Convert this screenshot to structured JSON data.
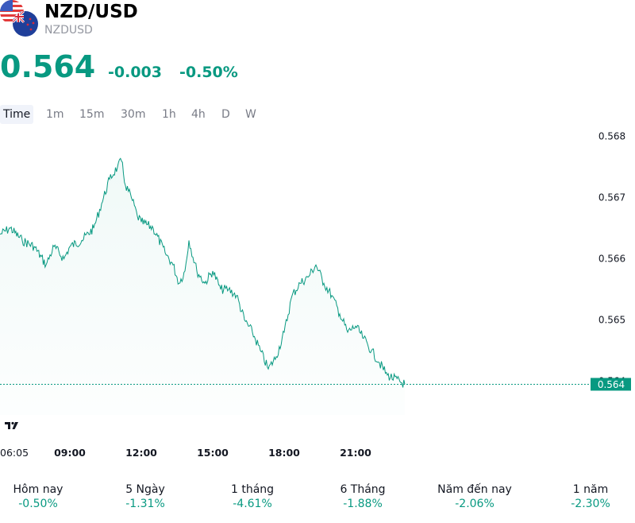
{
  "header": {
    "title": "NZD/USD",
    "symbol": "NZDUSD"
  },
  "quote": {
    "price": "0.564",
    "change": "-0.003",
    "change_percent": "-0.50%",
    "color": "#089981"
  },
  "intervals": [
    {
      "label": "Time",
      "active": true
    },
    {
      "label": "1m"
    },
    {
      "label": "15m"
    },
    {
      "label": "30m"
    },
    {
      "label": "1h"
    },
    {
      "label": "4h"
    },
    {
      "label": "D"
    },
    {
      "label": "W"
    }
  ],
  "chart_data": {
    "type": "area",
    "line_color": "#089981",
    "x_tick_labels": [
      "06:05",
      "09:00",
      "12:00",
      "15:00",
      "18:00",
      "21:00"
    ],
    "y_tick_labels": [
      "0.568",
      "0.567",
      "0.566",
      "0.565",
      "0.564"
    ],
    "ylim": [
      0.56345,
      0.56815
    ],
    "last_price_label": "0.564",
    "last_price": 0.56395,
    "series": [
      {
        "x": [
          "06:05",
          "06:30",
          "07:00",
          "07:30",
          "08:00",
          "08:20",
          "08:45",
          "09:00",
          "09:30",
          "10:00",
          "10:20",
          "10:40",
          "11:00",
          "11:10",
          "11:20",
          "11:35",
          "11:50",
          "12:00",
          "12:30",
          "13:00",
          "13:20",
          "13:35",
          "13:50",
          "14:00",
          "14:20",
          "14:40",
          "15:00",
          "15:20",
          "15:40",
          "16:00",
          "16:20",
          "16:40",
          "17:00",
          "17:20",
          "17:40",
          "18:00",
          "18:20",
          "18:40",
          "19:00",
          "19:20",
          "19:40",
          "20:00",
          "20:20",
          "20:40",
          "21:00",
          "21:20",
          "21:40",
          "22:00",
          "22:20",
          "22:40"
        ],
        "values": [
          0.5664,
          0.5665,
          0.5663,
          0.5662,
          0.5659,
          0.5662,
          0.566,
          0.5662,
          0.5663,
          0.5665,
          0.5669,
          0.5673,
          0.5675,
          0.5676,
          0.5672,
          0.567,
          0.5667,
          0.5666,
          0.5665,
          0.5661,
          0.5659,
          0.5656,
          0.5658,
          0.5663,
          0.5658,
          0.5656,
          0.5658,
          0.5655,
          0.5655,
          0.5654,
          0.565,
          0.5648,
          0.5645,
          0.5642,
          0.5644,
          0.5648,
          0.5654,
          0.5656,
          0.5657,
          0.5659,
          0.5656,
          0.5654,
          0.5651,
          0.5648,
          0.5649,
          0.5647,
          0.5645,
          0.5643,
          0.5641,
          0.56395
        ]
      }
    ]
  },
  "periods": [
    {
      "label": "Hôm nay",
      "value": "-0.50%"
    },
    {
      "label": "5 Ngày",
      "value": "-1.31%"
    },
    {
      "label": "1 tháng",
      "value": "-4.61%"
    },
    {
      "label": "6 Tháng",
      "value": "-1.88%"
    },
    {
      "label": "Năm đến nay",
      "value": "-2.06%"
    },
    {
      "label": "1 năm",
      "value": "-2.30%"
    }
  ]
}
